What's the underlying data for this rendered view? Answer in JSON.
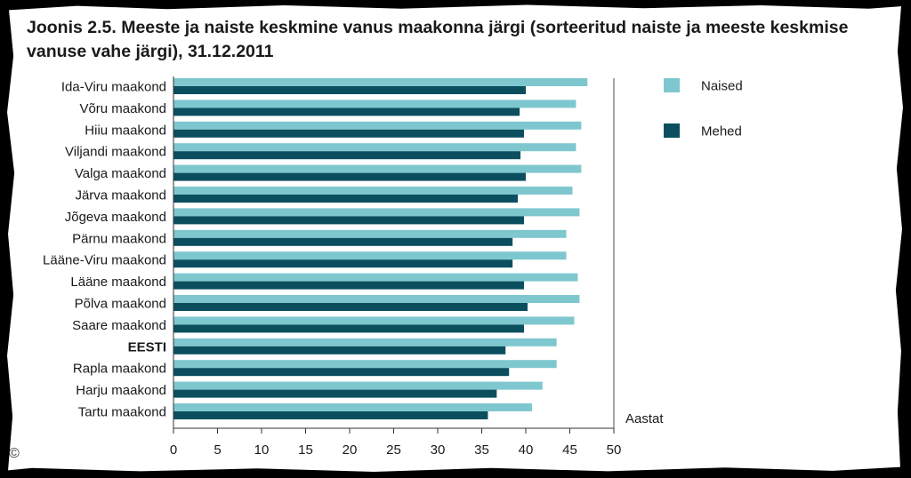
{
  "chart_data": {
    "type": "bar",
    "orientation": "horizontal",
    "title": "Joonis 2.5. Meeste ja naiste keskmine vanus maakonna järgi (sorteeritud naiste ja meeste keskmise vanuse vahe järgi), 31.12.2011",
    "xlabel": "Aastat",
    "ylabel": "",
    "xlim": [
      0,
      50
    ],
    "xticks": [
      0,
      5,
      10,
      15,
      20,
      25,
      30,
      35,
      40,
      45,
      50
    ],
    "reference_line": 50,
    "legend_position": "top-right",
    "categories": [
      "Ida-Viru maakond",
      "Võru maakond",
      "Hiiu maakond",
      "Viljandi maakond",
      "Valga maakond",
      "Järva maakond",
      "Jõgeva maakond",
      "Pärnu maakond",
      "Lääne-Viru maakond",
      "Lääne maakond",
      "Põlva maakond",
      "Saare maakond",
      "EESTI",
      "Rapla maakond",
      "Harju maakond",
      "Tartu maakond"
    ],
    "highlight_category": "EESTI",
    "series": [
      {
        "name": "Naised",
        "color": "#7fc7cf",
        "values": [
          47.0,
          45.7,
          46.3,
          45.7,
          46.3,
          45.3,
          46.1,
          44.6,
          44.6,
          45.9,
          46.1,
          45.5,
          43.5,
          43.5,
          41.9,
          40.7
        ]
      },
      {
        "name": "Mehed",
        "color": "#0b4f5f",
        "values": [
          40.0,
          39.3,
          39.8,
          39.4,
          40.0,
          39.1,
          39.8,
          38.5,
          38.5,
          39.8,
          40.2,
          39.8,
          37.7,
          38.1,
          36.7,
          35.7
        ]
      }
    ]
  },
  "footer": {
    "copyright": "©"
  }
}
